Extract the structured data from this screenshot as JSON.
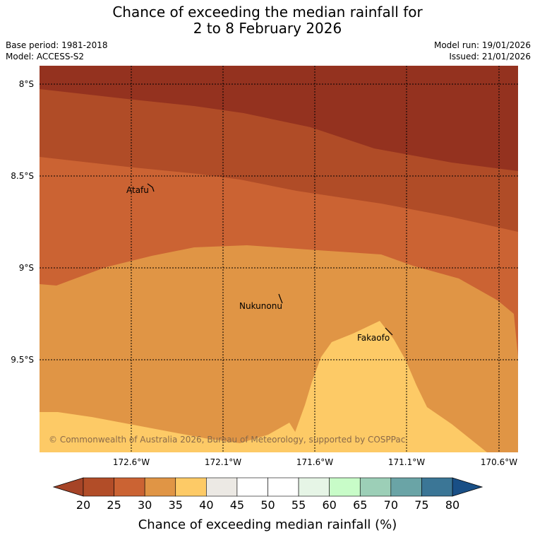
{
  "title_line1": "Chance of exceeding the median rainfall for",
  "title_line2": "2 to 8 February 2026",
  "base_period": "Base period: 1981-2018",
  "model": "Model: ACCESS-S2",
  "model_run": "Model run: 19/01/2026",
  "issued": "Issued: 21/01/2026",
  "lat_labels": [
    "8°S",
    "8.5°S",
    "9°S",
    "9.5°S"
  ],
  "lon_labels": [
    "172.6°W",
    "172.1°W",
    "171.6°W",
    "171.1°W",
    "170.6°W"
  ],
  "places": [
    "Atafu",
    "Nukunonu",
    "Fakaofo"
  ],
  "copyright": "© Commonwealth of Australia 2026, Bureau of Meteorology, supported by COSPPac",
  "colorbar": {
    "ticks": [
      "20",
      "25",
      "30",
      "35",
      "40",
      "45",
      "50",
      "55",
      "60",
      "65",
      "70",
      "75",
      "80"
    ],
    "colors": [
      "#a64427",
      "#b24d28",
      "#cb6333",
      "#e09545",
      "#fdca66",
      "#ece9e4",
      "#ffffff",
      "#ffffff",
      "#e6f5e6",
      "#c8fcc8",
      "#9ccfb7",
      "#6aa4a6",
      "#3b7696",
      "#194f86"
    ],
    "label": "Chance of exceeding median rainfall (%)"
  },
  "zone_colors": {
    "lt20": "#94321f",
    "c20_25": "#b04c27",
    "c25_30": "#cb6333",
    "c30_35": "#e09545",
    "c35_40": "#fdca66"
  }
}
